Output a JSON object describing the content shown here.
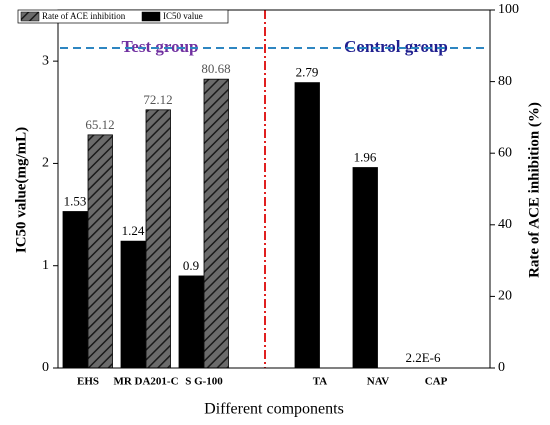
{
  "chart_data": {
    "type": "bar",
    "xlabel": "Different components",
    "ylabel": "IC50 value(mg/mL)",
    "y2label": "Rate of ACE inhibition (%)",
    "categories": [
      "EHS",
      "MR DA201-C",
      "S G-100",
      "TA",
      "NAV",
      "CAP"
    ],
    "series": [
      {
        "name": "Rate of ACE inhibition",
        "color": "#5a5a5a",
        "pattern": "hatch",
        "axis": "y2",
        "values": [
          65.12,
          72.12,
          80.68,
          null,
          null,
          null
        ]
      },
      {
        "name": "IC50 value",
        "color": "#000000",
        "values": [
          1.53,
          1.24,
          0.9,
          2.79,
          1.96,
          2.2e-06
        ],
        "value_labels": [
          "1.53",
          "1.24",
          "0.9",
          "2.79",
          "1.96",
          "2.2E-6"
        ]
      }
    ],
    "annotations": [
      "Test group",
      "Control group"
    ],
    "ylim": [
      0,
      3.5
    ],
    "yticks": [
      0,
      1,
      2,
      3
    ],
    "y2lim": [
      0,
      100
    ],
    "y2ticks": [
      0,
      20,
      40,
      60,
      80,
      100
    ]
  }
}
